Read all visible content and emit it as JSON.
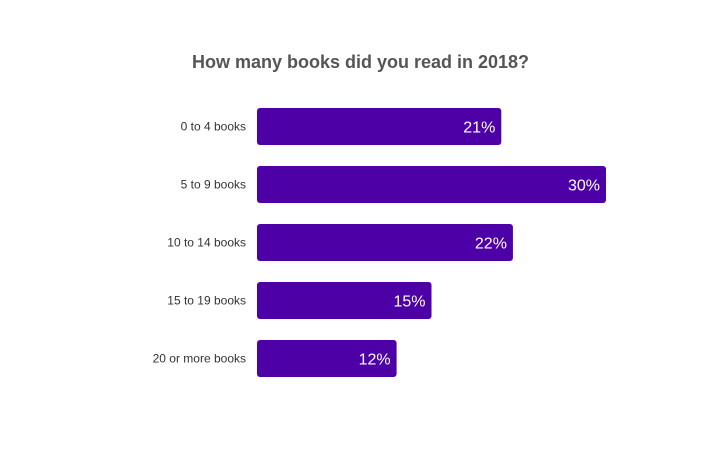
{
  "chart_data": {
    "type": "bar",
    "orientation": "horizontal",
    "title": "How many books did you read in 2018?",
    "categories": [
      "0 to 4 books",
      "5 to 9 books",
      "10 to 14 books",
      "15 to 19 books",
      "20 or more books"
    ],
    "values": [
      21,
      30,
      22,
      15,
      12
    ],
    "value_labels": [
      "21%",
      "30%",
      "22%",
      "15%",
      "12%"
    ],
    "unit": "%",
    "xlabel": "",
    "ylabel": "",
    "xlim": [
      0,
      30
    ],
    "grid": false,
    "legend": "none",
    "bar_color": "#4d00a6",
    "label_color": "#ffffff"
  }
}
